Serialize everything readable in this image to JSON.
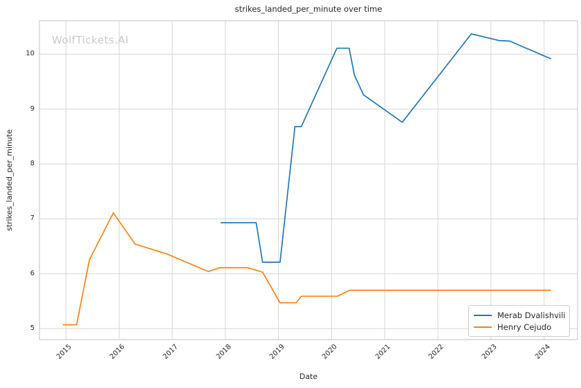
{
  "chart_data": {
    "type": "line",
    "title": "strikes_landed_per_minute over time",
    "xlabel": "Date",
    "ylabel": "strikes_landed_per_minute",
    "watermark": "WolfTickets.AI",
    "grid": true,
    "legend_position": "lower right",
    "x_ticks": [
      2015,
      2016,
      2017,
      2018,
      2019,
      2020,
      2021,
      2022,
      2023,
      2024
    ],
    "y_ticks": [
      5,
      6,
      7,
      8,
      9,
      10
    ],
    "x_range": [
      2014.5,
      2024.63
    ],
    "y_range": [
      4.8,
      10.61
    ],
    "colors": {
      "grid": "#d5d5d5",
      "spine": "#c0c0c0",
      "text": "#262626",
      "watermark": "#c9c9c9",
      "series_blue": "#1f77b4",
      "series_orange": "#ff7f0e"
    },
    "series": [
      {
        "name": "Merab Dvalishvili",
        "color": "#1f77b4",
        "points": [
          [
            2017.92,
            6.93
          ],
          [
            2018.58,
            6.93
          ],
          [
            2018.7,
            6.21
          ],
          [
            2019.03,
            6.21
          ],
          [
            2019.31,
            8.68
          ],
          [
            2019.43,
            8.68
          ],
          [
            2020.1,
            10.11
          ],
          [
            2020.33,
            10.11
          ],
          [
            2020.43,
            9.62
          ],
          [
            2020.6,
            9.26
          ],
          [
            2021.33,
            8.76
          ],
          [
            2022.63,
            10.37
          ],
          [
            2023.15,
            10.25
          ],
          [
            2023.35,
            10.24
          ],
          [
            2024.12,
            9.92
          ]
        ]
      },
      {
        "name": "Henry Cejudo",
        "color": "#ff7f0e",
        "points": [
          [
            2014.95,
            5.07
          ],
          [
            2015.2,
            5.07
          ],
          [
            2015.44,
            6.25
          ],
          [
            2015.89,
            7.11
          ],
          [
            2016.3,
            6.54
          ],
          [
            2016.9,
            6.36
          ],
          [
            2017.68,
            6.04
          ],
          [
            2017.9,
            6.11
          ],
          [
            2018.42,
            6.11
          ],
          [
            2018.7,
            6.03
          ],
          [
            2019.03,
            5.47
          ],
          [
            2019.33,
            5.47
          ],
          [
            2019.43,
            5.59
          ],
          [
            2020.11,
            5.59
          ],
          [
            2020.34,
            5.7
          ],
          [
            2024.12,
            5.7
          ]
        ]
      }
    ]
  }
}
